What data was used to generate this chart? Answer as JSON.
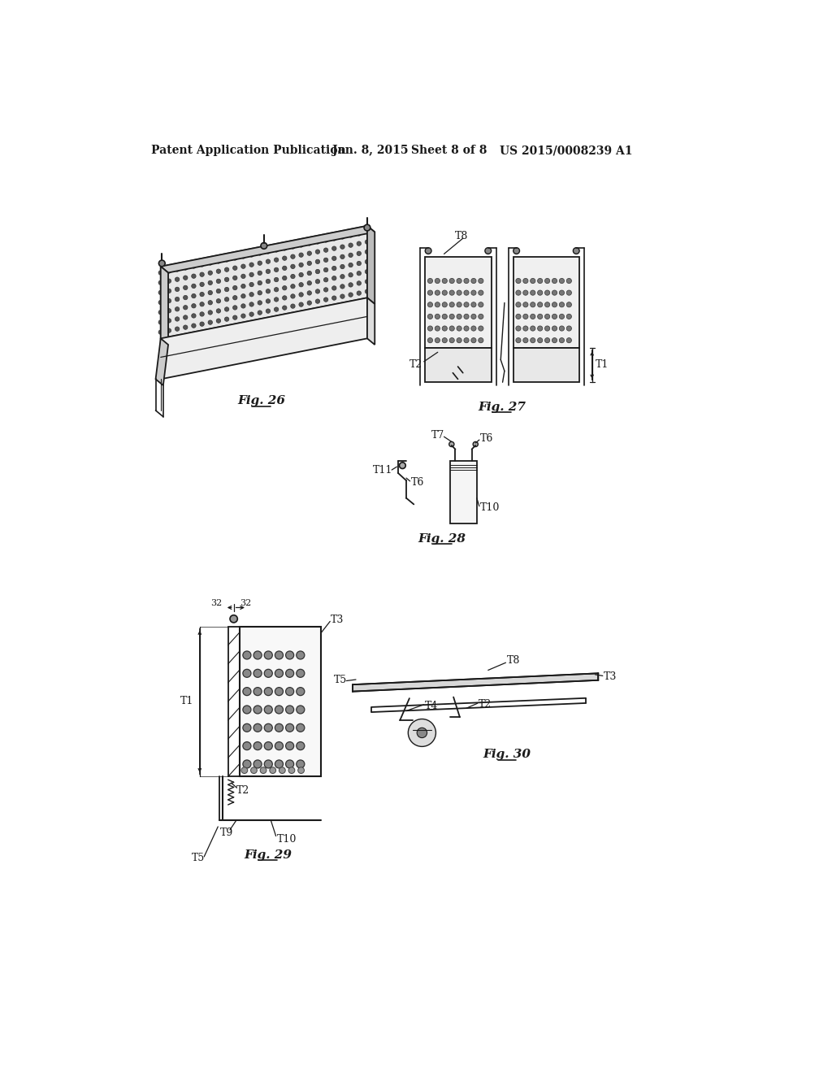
{
  "bg_color": "#ffffff",
  "header_text": "Patent Application Publication",
  "header_date": "Jan. 8, 2015",
  "header_sheet": "Sheet 8 of 8",
  "header_patent": "US 2015/0008239 A1",
  "fig26_label": "Fig. 26",
  "fig27_label": "Fig. 27",
  "fig28_label": "Fig. 28",
  "fig29_label": "Fig. 29",
  "fig30_label": "Fig. 30",
  "line_color": "#1a1a1a",
  "text_color": "#1a1a1a",
  "dot_color": "#555555",
  "light_gray": "#dddddd",
  "mid_gray": "#aaaaaa"
}
